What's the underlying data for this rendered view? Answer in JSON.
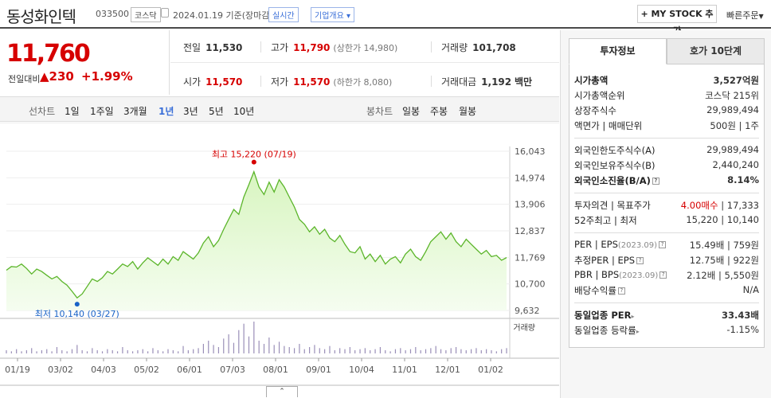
{
  "header": {
    "name": "동성화인텍",
    "code": "033500",
    "market": "코스닥",
    "date": "2024.01.19",
    "date_note": "기준(장마감)",
    "realtime_label": "실시간",
    "company_label": "기업개요",
    "mystock_label": "+ MY STOCK 추가",
    "quick_order_label": "빠른주문"
  },
  "price": {
    "current": "11,760",
    "change_label": "전일대비",
    "change": "230",
    "change_pct": "+1.99%"
  },
  "quotes": {
    "prev_close": {
      "label": "전일",
      "value": "11,530"
    },
    "high": {
      "label": "고가",
      "value": "11,790",
      "note": "(상한가 14,980)"
    },
    "volume": {
      "label": "거래량",
      "value": "101,708"
    },
    "open": {
      "label": "시가",
      "value": "11,570"
    },
    "low": {
      "label": "저가",
      "value": "11,570",
      "note": "(하한가 8,080)"
    },
    "amount": {
      "label": "거래대금",
      "value": "1,192",
      "unit": "백만"
    }
  },
  "period_bar": {
    "line_label": "선차트",
    "periods": [
      "1일",
      "1주일",
      "3개월",
      "1년",
      "3년",
      "5년",
      "10년"
    ],
    "active": "1년",
    "candle_label": "봉차트",
    "candles": [
      "일봉",
      "주봉",
      "월봉"
    ]
  },
  "chart_data": {
    "type": "area",
    "y_ticks": [
      "16,043",
      "14,974",
      "13,906",
      "12,837",
      "11,769",
      "10,700",
      "9,632"
    ],
    "ylim": [
      9632,
      16043
    ],
    "x_ticks": [
      "01/19",
      "03/02",
      "04/03",
      "05/02",
      "06/01",
      "07/03",
      "08/01",
      "09/01",
      "10/04",
      "11/01",
      "12/01",
      "01/02"
    ],
    "values": [
      11250,
      11400,
      11380,
      11500,
      11320,
      11100,
      11300,
      11200,
      11050,
      10900,
      11000,
      10800,
      10650,
      10400,
      10140,
      10300,
      10600,
      10900,
      10800,
      10950,
      11200,
      11100,
      11300,
      11500,
      11400,
      11600,
      11300,
      11550,
      11750,
      11600,
      11450,
      11700,
      11500,
      11800,
      11650,
      12000,
      11850,
      11700,
      11950,
      12350,
      12600,
      12200,
      12450,
      12900,
      13300,
      13700,
      13500,
      14200,
      14700,
      15220,
      14600,
      14300,
      14800,
      14400,
      14900,
      14600,
      14200,
      13800,
      13300,
      13100,
      12800,
      13000,
      12700,
      12900,
      12550,
      12400,
      12650,
      12300,
      12000,
      11950,
      12200,
      11700,
      11900,
      11600,
      11850,
      11500,
      11700,
      11800,
      11550,
      11900,
      12100,
      11800,
      11650,
      12000,
      12400,
      12600,
      12800,
      12500,
      12750,
      12400,
      12200,
      12500,
      12300,
      12100,
      11900,
      12050,
      11800,
      11850,
      11650,
      11760
    ],
    "max_label": "최고 15,220 (07/19)",
    "min_label": "최저 10,140 (03/27)",
    "volume_label": "거래량",
    "volume": [
      3,
      2,
      4,
      2,
      3,
      5,
      2,
      3,
      4,
      2,
      6,
      3,
      2,
      4,
      8,
      3,
      2,
      5,
      3,
      2,
      4,
      3,
      2,
      6,
      3,
      2,
      3,
      4,
      2,
      5,
      3,
      2,
      4,
      3,
      2,
      7,
      3,
      4,
      5,
      9,
      12,
      8,
      6,
      14,
      18,
      10,
      22,
      28,
      16,
      30,
      12,
      9,
      15,
      8,
      11,
      7,
      6,
      5,
      9,
      4,
      6,
      8,
      5,
      4,
      7,
      3,
      5,
      4,
      6,
      3,
      4,
      5,
      3,
      4,
      6,
      3,
      2,
      4,
      5,
      3,
      4,
      6,
      3,
      4,
      5,
      7,
      4,
      3,
      5,
      6,
      4,
      3,
      4,
      5,
      3,
      4,
      3,
      2,
      4,
      5
    ],
    "line_color": "#5bb52a",
    "fill_color": "#d8f5c0"
  },
  "right_panel": {
    "tabs": [
      "투자정보",
      "호가 10단계"
    ],
    "market_cap": {
      "label": "시가총액",
      "value": "3,527억원"
    },
    "rank": {
      "label": "시가총액순위",
      "value": "코스닥 215위"
    },
    "shares": {
      "label": "상장주식수",
      "value": "29,989,494"
    },
    "par": {
      "label": "액면가 | 매매단위",
      "value": "500원 | 1주"
    },
    "foreign_limit": {
      "label": "외국인한도주식수(A)",
      "value": "29,989,494"
    },
    "foreign_hold": {
      "label": "외국인보유주식수(B)",
      "value": "2,440,240"
    },
    "foreign_ratio": {
      "label": "외국인소진율(B/A)",
      "value": "8.14%"
    },
    "opinion": {
      "label": "투자의견 | 목표주가",
      "opinion": "4.00매수",
      "target": "17,333"
    },
    "week52": {
      "label": "52주최고 | 최저",
      "value": "15,220 | 10,140"
    },
    "per": {
      "label": "PER | EPS",
      "note": "(2023.09)",
      "value": "15.49배 | 759원"
    },
    "est_per": {
      "label": "추정PER | EPS",
      "value": "12.75배 | 922원"
    },
    "pbr": {
      "label": "PBR | BPS",
      "note": "(2023.09)",
      "value": "2.12배 | 5,550원"
    },
    "dividend": {
      "label": "배당수익률",
      "value": "N/A"
    },
    "sector_per": {
      "label": "동일업종 PER",
      "value": "33.43배"
    },
    "sector_change": {
      "label": "동일업종 등락률",
      "value": "-1.15%"
    }
  }
}
